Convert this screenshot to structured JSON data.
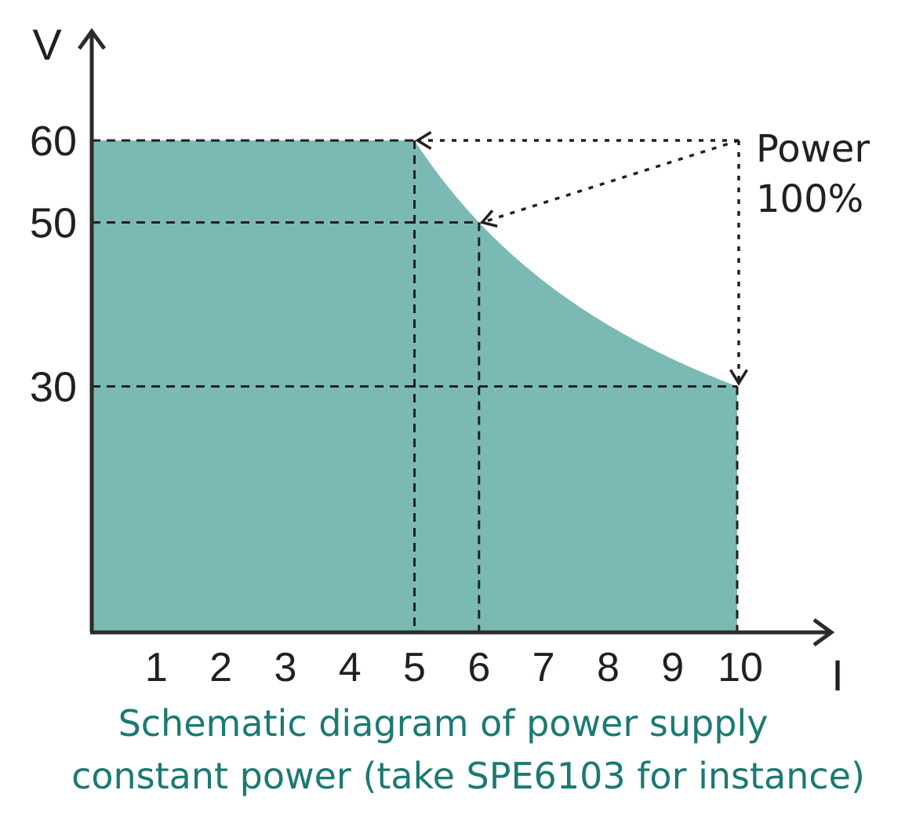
{
  "chart_data": {
    "type": "area",
    "xlabel": "I",
    "ylabel": "V",
    "x_ticks": [
      "1",
      "2",
      "3",
      "4",
      "5",
      "6",
      "7",
      "8",
      "9",
      "10"
    ],
    "y_ticks": [
      "30",
      "50",
      "60"
    ],
    "xlim": [
      0,
      11
    ],
    "ylim": [
      0,
      60
    ],
    "series": [
      {
        "x": [
          0,
          5,
          6,
          7,
          8,
          9,
          10,
          10
        ],
        "y": [
          60,
          60,
          50,
          42.86,
          37.5,
          33.33,
          30,
          0
        ],
        "fill_color": "#7bbab4"
      }
    ],
    "annotations": {
      "power_label": [
        "Power",
        "100%"
      ],
      "guide_points": [
        {
          "x": 5,
          "y": 60
        },
        {
          "x": 6,
          "y": 50
        },
        {
          "x": 10,
          "y": 30
        }
      ],
      "source_point": {
        "x": 10,
        "y": 60
      }
    },
    "caption": [
      "Schematic diagram of power supply",
      "constant power (take SPE6103 for instance)"
    ],
    "colors": {
      "fill": "#7bbab4",
      "axis": "#2b2b2b",
      "caption": "#1a7a72"
    }
  }
}
